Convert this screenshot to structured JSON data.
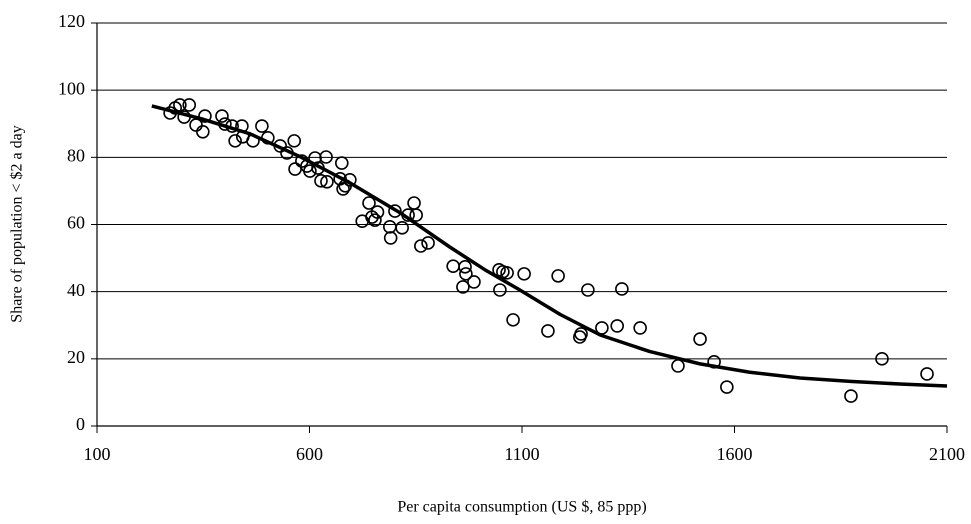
{
  "chart_data": {
    "type": "scatter",
    "x_label": "Per capita consumption (US $, 85 ppp)",
    "y_label": "Share of population < $2 a day",
    "xlim": [
      100,
      2100
    ],
    "xticks": [
      100,
      600,
      1100,
      1600,
      2100
    ],
    "ylim": [
      0,
      120
    ],
    "yticks": [
      0,
      20,
      40,
      60,
      80,
      100,
      120
    ],
    "grid": true,
    "series": [
      {
        "type": "scatter",
        "color": "#000000",
        "x": [
          272,
          284,
          295,
          305,
          317,
          333,
          349,
          354,
          394,
          401,
          418,
          425,
          441,
          443,
          467,
          488,
          502,
          531,
          547,
          564,
          566,
          582,
          594,
          601,
          613,
          620,
          627,
          639,
          641,
          672,
          676,
          679,
          684,
          695,
          724,
          740,
          747,
          754,
          760,
          789,
          791,
          801,
          818,
          832,
          846,
          851,
          862,
          879,
          938,
          961,
          966,
          968,
          987,
          1046,
          1048,
          1055,
          1065,
          1079,
          1105,
          1161,
          1185,
          1236,
          1239,
          1255,
          1288,
          1324,
          1335,
          1378,
          1467,
          1519,
          1552,
          1582,
          1874,
          1947,
          2053
        ],
        "values": [
          93.2,
          94.7,
          95.6,
          92.0,
          95.6,
          89.6,
          87.6,
          92.3,
          92.3,
          89.9,
          89.3,
          84.9,
          89.3,
          86.1,
          84.9,
          89.3,
          85.8,
          83.4,
          81.3,
          84.9,
          76.5,
          78.9,
          77.4,
          75.9,
          79.8,
          76.8,
          73.0,
          80.1,
          72.7,
          73.6,
          78.3,
          70.6,
          71.5,
          73.3,
          61.0,
          66.4,
          62.2,
          61.3,
          63.7,
          59.3,
          56.0,
          64.0,
          59.0,
          62.8,
          66.4,
          62.8,
          53.6,
          54.5,
          47.6,
          41.4,
          47.4,
          45.3,
          42.9,
          46.5,
          40.5,
          45.9,
          45.6,
          31.6,
          45.3,
          28.3,
          44.7,
          26.5,
          27.4,
          40.5,
          29.2,
          29.8,
          40.8,
          29.2,
          17.9,
          25.9,
          19.1,
          11.6,
          8.9,
          20.0,
          15.5
        ]
      },
      {
        "type": "line",
        "color": "#000000",
        "x": [
          229,
          345,
          460,
          578,
          695,
          813,
          930,
          1013,
          1095,
          1190,
          1284,
          1400,
          1519,
          1636,
          1754,
          1872,
          1989,
          2100
        ],
        "values": [
          95.3,
          91.5,
          87,
          80.2,
          72.4,
          63.5,
          53.3,
          46.5,
          40.5,
          33.2,
          27.1,
          22.2,
          18.5,
          16,
          14.3,
          13.3,
          12.5,
          11.9
        ]
      }
    ]
  }
}
